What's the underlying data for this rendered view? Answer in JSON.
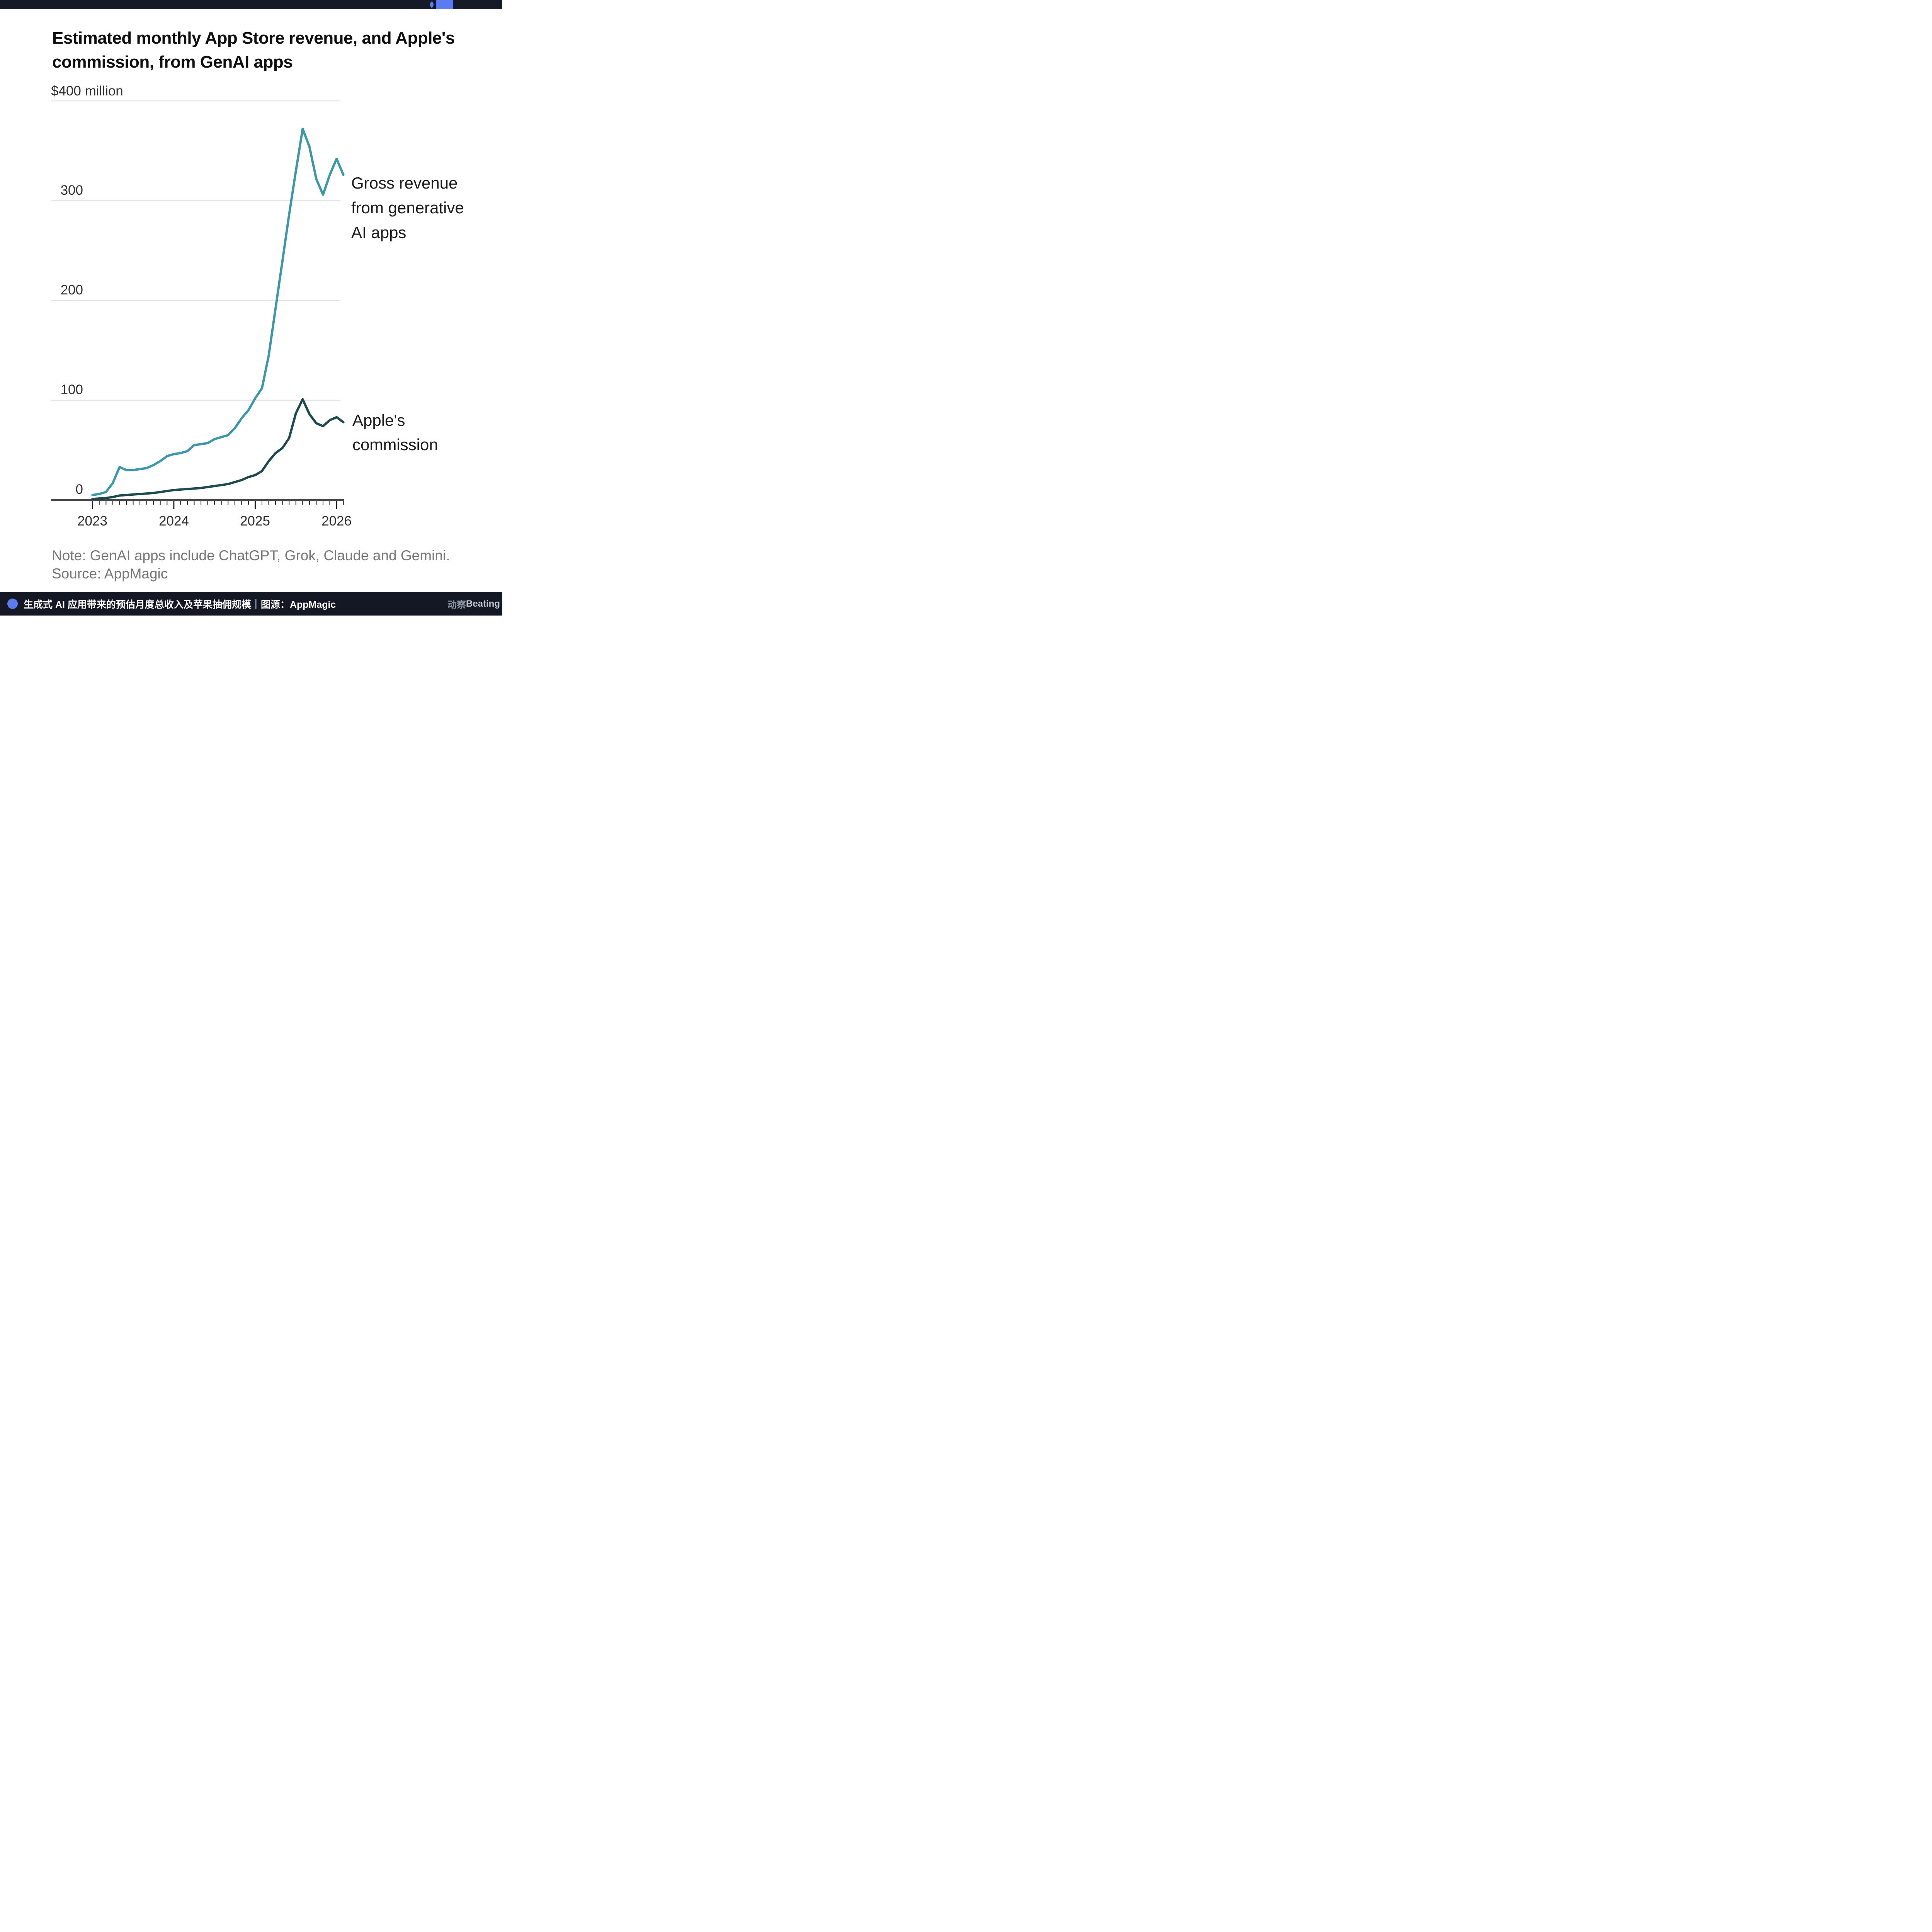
{
  "topbar": {
    "accent_color": "#5d7bf0"
  },
  "header": {
    "title": "Estimated monthly App Store revenue, and Apple's commission, from GenAI apps",
    "title_lines": [
      "Estimated monthly App Store revenue, and Apple's",
      "commission, from GenAI apps"
    ]
  },
  "axis": {
    "unit_label": "$400 million",
    "y_ticks": [
      "300",
      "200",
      "100",
      "0"
    ],
    "x_ticks": [
      "2023",
      "2024",
      "2025",
      "2026"
    ]
  },
  "annotations": {
    "gross_lines": [
      "Gross revenue",
      "from generative",
      "AI apps"
    ],
    "commission_lines": [
      "Apple's",
      "commission"
    ]
  },
  "note": "Note: GenAI apps include ChatGPT, Grok, Claude and Gemini.",
  "source": "Source: AppMagic",
  "footer": {
    "caption": "生成式 AI 应用带来的预估月度总收入及苹果抽佣规模｜图源：AppMagic",
    "logo_zh": "动察",
    "logo_en": "Beating"
  },
  "colors": {
    "gross_line": "#3d97ab",
    "commission_line": "#1d4a4f",
    "gridline": "#e3e3e3",
    "axis": "#1f1f1f",
    "accent_blue": "#5d7bf0",
    "bar_background": "#141824"
  },
  "chart_data": {
    "type": "line",
    "title": "Estimated monthly App Store revenue, and Apple's commission, from GenAI apps",
    "ylabel": "$ million",
    "ylim": [
      0,
      400
    ],
    "y_gridlines": [
      100,
      200,
      300,
      400
    ],
    "grid": "horizontal",
    "legend_position": "right-annotations",
    "x": [
      "2023-01",
      "2023-02",
      "2023-03",
      "2023-04",
      "2023-05",
      "2023-06",
      "2023-07",
      "2023-08",
      "2023-09",
      "2023-10",
      "2023-11",
      "2023-12",
      "2024-01",
      "2024-02",
      "2024-03",
      "2024-04",
      "2024-05",
      "2024-06",
      "2024-07",
      "2024-08",
      "2024-09",
      "2024-10",
      "2024-11",
      "2024-12",
      "2025-01",
      "2025-02",
      "2025-03",
      "2025-04",
      "2025-05",
      "2025-06",
      "2025-07",
      "2025-08",
      "2025-09",
      "2025-10",
      "2025-11",
      "2025-12",
      "2026-01",
      "2026-02"
    ],
    "series": [
      {
        "name": "Gross revenue from generative AI apps",
        "color": "#3d97ab",
        "values": [
          5,
          6,
          8,
          17,
          33,
          30,
          30,
          31,
          32,
          35,
          39,
          44,
          46,
          47,
          49,
          55,
          56,
          57,
          61,
          63,
          65,
          72,
          82,
          90,
          102,
          112,
          145,
          192,
          239,
          286,
          330,
          372,
          354,
          322,
          306,
          326,
          342,
          326
        ]
      },
      {
        "name": "Apple's commission",
        "color": "#1d4a4f",
        "values": [
          1,
          1.5,
          2,
          3,
          4.5,
          5,
          5.5,
          6,
          6.5,
          7,
          8,
          9,
          10,
          10.5,
          11,
          11.5,
          12,
          13,
          14,
          15,
          16,
          18,
          20,
          23,
          25,
          29,
          39,
          47,
          52,
          62,
          87,
          101,
          86,
          77,
          74,
          80,
          83,
          78
        ]
      }
    ]
  }
}
